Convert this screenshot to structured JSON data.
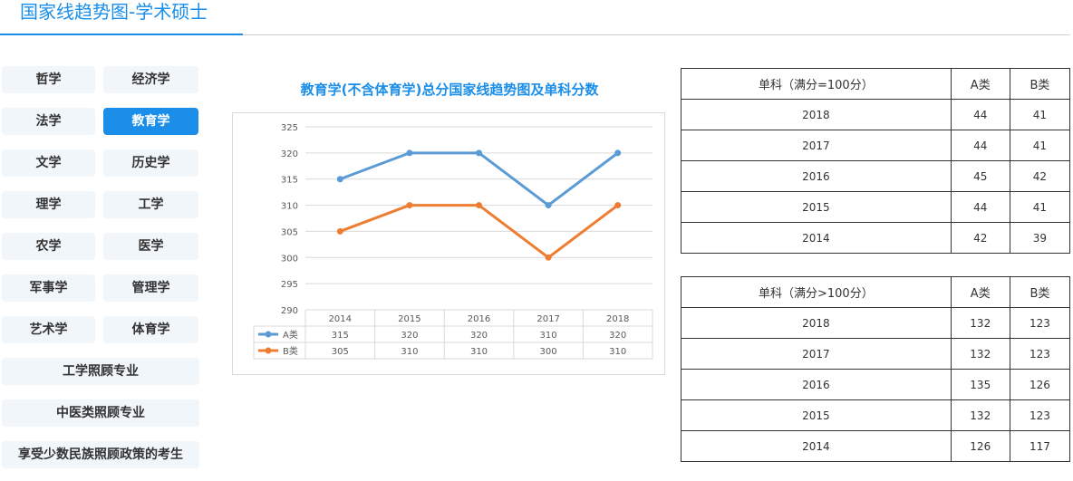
{
  "page": {
    "title": "国家线趋势图-学术硕士"
  },
  "categories": [
    {
      "label": "哲学",
      "active": false
    },
    {
      "label": "经济学",
      "active": false
    },
    {
      "label": "法学",
      "active": false
    },
    {
      "label": "教育学",
      "active": true
    },
    {
      "label": "文学",
      "active": false
    },
    {
      "label": "历史学",
      "active": false
    },
    {
      "label": "理学",
      "active": false
    },
    {
      "label": "工学",
      "active": false
    },
    {
      "label": "农学",
      "active": false
    },
    {
      "label": "医学",
      "active": false
    },
    {
      "label": "军事学",
      "active": false
    },
    {
      "label": "管理学",
      "active": false
    },
    {
      "label": "艺术学",
      "active": false
    },
    {
      "label": "体育学",
      "active": false
    },
    {
      "label": "工学照顾专业",
      "active": false
    },
    {
      "label": "中医类照顾专业",
      "active": false
    },
    {
      "label": "享受少数民族照顾政策的考生",
      "active": false
    }
  ],
  "chart_data": {
    "type": "line",
    "title": "教育学(不含体育学)总分国家线趋势图及单科分数",
    "categories": [
      "2014",
      "2015",
      "2016",
      "2017",
      "2018"
    ],
    "series": [
      {
        "name": "A类",
        "values": [
          315,
          320,
          320,
          310,
          320
        ],
        "color": "#5b9bd5"
      },
      {
        "name": "B类",
        "values": [
          305,
          310,
          310,
          300,
          310
        ],
        "color": "#ed7d31"
      }
    ],
    "ylim": [
      290,
      325
    ],
    "yticks": [
      "325",
      "320",
      "315",
      "310",
      "305",
      "300",
      "295",
      "290"
    ],
    "grid": true,
    "legend": "data-table"
  },
  "table_le100": {
    "headers": [
      "单科（满分=100分）",
      "A类",
      "B类"
    ],
    "rows": [
      [
        "2018",
        "44",
        "41"
      ],
      [
        "2017",
        "44",
        "41"
      ],
      [
        "2016",
        "45",
        "42"
      ],
      [
        "2015",
        "44",
        "41"
      ],
      [
        "2014",
        "42",
        "39"
      ]
    ]
  },
  "table_gt100": {
    "headers": [
      "单科（满分>100分）",
      "A类",
      "B类"
    ],
    "rows": [
      [
        "2018",
        "132",
        "123"
      ],
      [
        "2017",
        "132",
        "123"
      ],
      [
        "2016",
        "135",
        "126"
      ],
      [
        "2015",
        "132",
        "123"
      ],
      [
        "2014",
        "126",
        "117"
      ]
    ]
  }
}
